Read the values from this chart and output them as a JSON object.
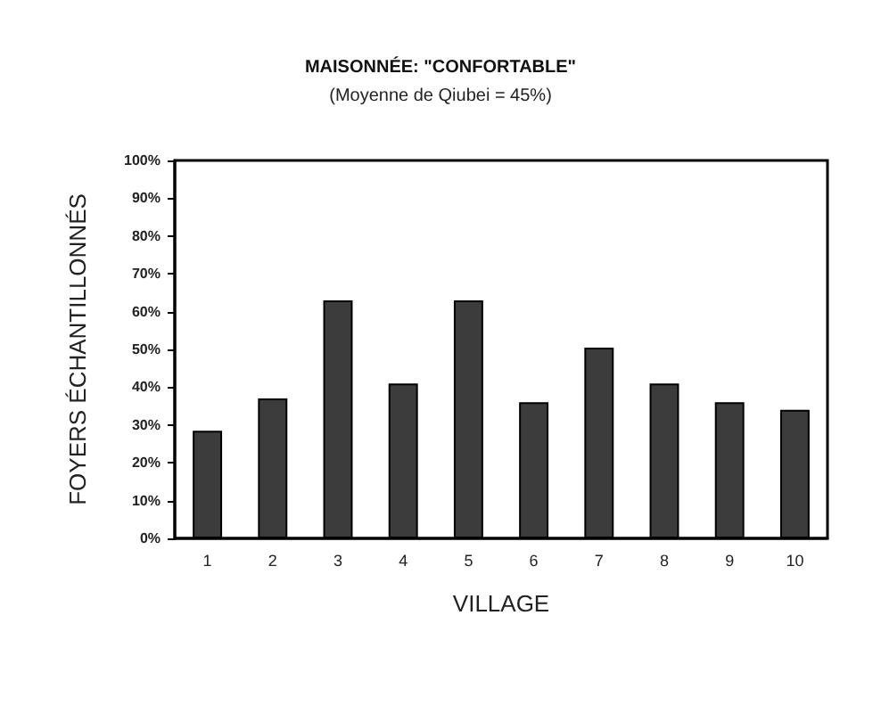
{
  "chart_data": {
    "type": "bar",
    "title": "MAISONNÉE: \"CONFORTABLE\"",
    "subtitle": "(Moyenne de Qiubei = 45%)",
    "xlabel": "VILLAGE",
    "ylabel": "FOYERS ÉCHANTILLONNÉS",
    "categories": [
      "1",
      "2",
      "3",
      "4",
      "5",
      "6",
      "7",
      "8",
      "9",
      "10"
    ],
    "values": [
      28.5,
      37,
      63,
      41,
      63,
      36,
      50.5,
      41,
      36,
      34
    ],
    "color": "#3c3c3c",
    "ylim": [
      0,
      100
    ],
    "yticks": [
      {
        "value": 0,
        "label": "0%"
      },
      {
        "value": 10,
        "label": "10%"
      },
      {
        "value": 20,
        "label": "20%"
      },
      {
        "value": 30,
        "label": "30%"
      },
      {
        "value": 40,
        "label": "40%"
      },
      {
        "value": 50,
        "label": "50%"
      },
      {
        "value": 60,
        "label": "60%"
      },
      {
        "value": 70,
        "label": "70%"
      },
      {
        "value": 80,
        "label": "80%"
      },
      {
        "value": 90,
        "label": "90%"
      },
      {
        "value": 100,
        "label": "100%"
      }
    ],
    "grid": false
  }
}
